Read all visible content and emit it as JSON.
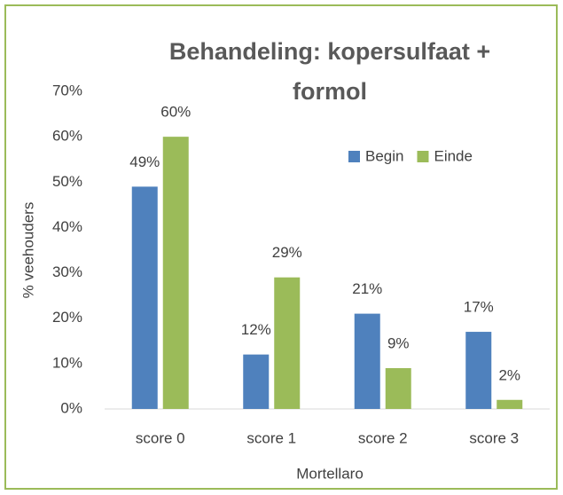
{
  "chart_data": {
    "type": "bar",
    "title": "Behandeling: kopersulfaat + formol",
    "x_label": "Mortellaro",
    "y_label": "% veehouders",
    "categories": [
      "score 0",
      "score 1",
      "score 2",
      "score 3"
    ],
    "series": [
      {
        "name": "Begin",
        "color": "#4f81bd",
        "values": [
          49,
          12,
          21,
          17
        ],
        "value_labels": [
          "49%",
          "12%",
          "21%",
          "17%"
        ]
      },
      {
        "name": "Einde",
        "color": "#9bbb59",
        "values": [
          60,
          29,
          9,
          2
        ],
        "value_labels": [
          "60%",
          "29%",
          "9%",
          "2%"
        ]
      }
    ],
    "ylim": [
      0,
      70
    ],
    "yticks": [
      {
        "value": 0,
        "label": "0%"
      },
      {
        "value": 10,
        "label": "10%"
      },
      {
        "value": 20,
        "label": "20%"
      },
      {
        "value": 30,
        "label": "30%"
      },
      {
        "value": 40,
        "label": "40%"
      },
      {
        "value": 50,
        "label": "50%"
      },
      {
        "value": 60,
        "label": "60%"
      },
      {
        "value": 70,
        "label": "70%"
      }
    ],
    "grid": false,
    "legend": "top-right",
    "border_color": "#9bbb59"
  }
}
